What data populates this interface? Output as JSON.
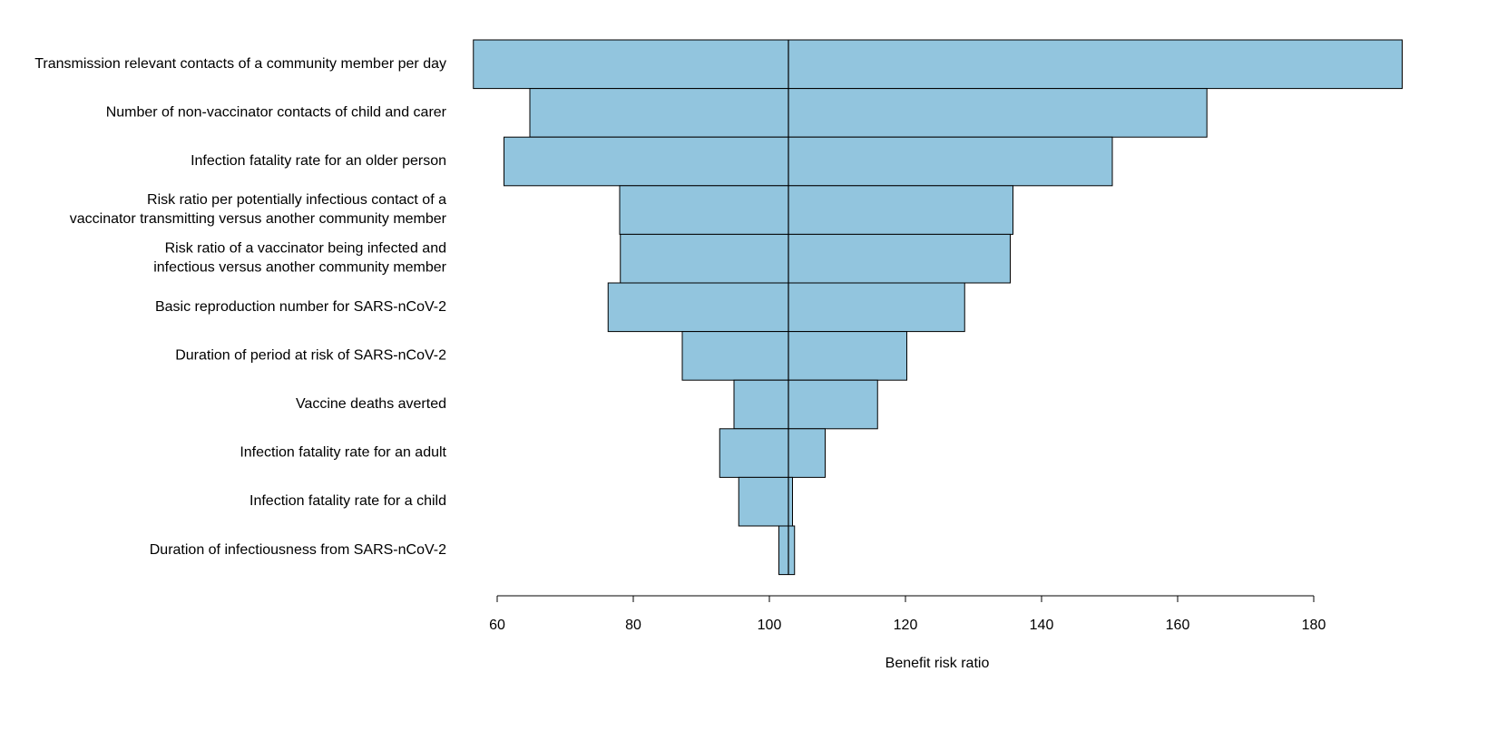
{
  "chart_data": {
    "type": "bar",
    "orientation": "horizontal",
    "subtype": "tornado",
    "title": "",
    "xlabel": "Benefit risk ratio",
    "ylabel": "",
    "xlim": [
      56.5,
      193
    ],
    "x_ticks": [
      60,
      80,
      100,
      120,
      140,
      160,
      180
    ],
    "baseline": 102.8,
    "bar_color": "#92c5de",
    "edge_color": "#000000",
    "grid": false,
    "legend": "none",
    "bars": [
      {
        "label": [
          "Transmission relevant contacts of a community member per day"
        ],
        "low": 56.5,
        "high": 193
      },
      {
        "label": [
          "Number of non-vaccinator contacts of child and carer"
        ],
        "low": 64.8,
        "high": 164.3
      },
      {
        "label": [
          "Infection fatality rate for an older person"
        ],
        "low": 61.0,
        "high": 150.4
      },
      {
        "label": [
          "Risk ratio per potentially infectious contact of a",
          "vaccinator transmitting versus another community member"
        ],
        "low": 78.0,
        "high": 135.8
      },
      {
        "label": [
          "Risk ratio of a vaccinator being infected and",
          "infectious versus another community member"
        ],
        "low": 78.1,
        "high": 135.4
      },
      {
        "label": [
          "Basic reproduction number for SARS-nCoV-2"
        ],
        "low": 76.3,
        "high": 128.7
      },
      {
        "label": [
          "Duration of period at risk of SARS-nCoV-2"
        ],
        "low": 87.2,
        "high": 120.2
      },
      {
        "label": [
          "Vaccine deaths averted"
        ],
        "low": 94.8,
        "high": 115.9
      },
      {
        "label": [
          "Infection fatality rate for an adult"
        ],
        "low": 92.7,
        "high": 108.2
      },
      {
        "label": [
          "Infection fatality rate for a child"
        ],
        "low": 95.5,
        "high": 103.4
      },
      {
        "label": [
          "Duration of infectiousness from SARS-nCoV-2"
        ],
        "low": 101.4,
        "high": 103.7
      }
    ]
  }
}
